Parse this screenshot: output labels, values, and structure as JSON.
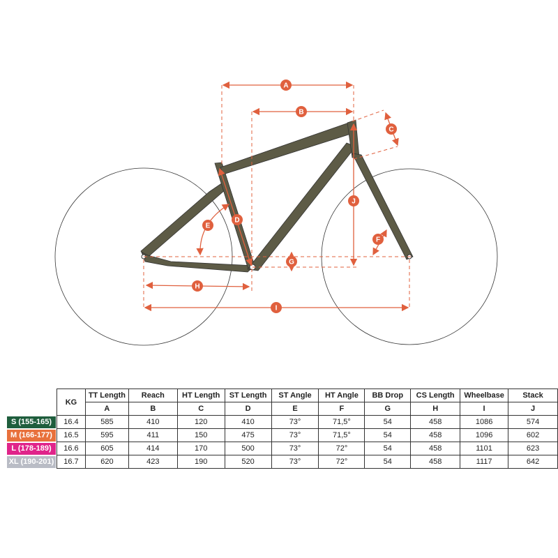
{
  "colors": {
    "frame": "#5d5b46",
    "dimension": "#e0603e",
    "size_s": "#1f5e3d",
    "size_m": "#e8713c",
    "size_l": "#e0248a",
    "size_xl": "#b9bcc5"
  },
  "dimension_labels": [
    "A",
    "B",
    "C",
    "D",
    "E",
    "F",
    "G",
    "H",
    "I",
    "J"
  ],
  "table": {
    "kg_header": "KG",
    "headers": [
      {
        "name": "TT Length",
        "code": "A"
      },
      {
        "name": "Reach",
        "code": "B"
      },
      {
        "name": "HT Length",
        "code": "C"
      },
      {
        "name": "ST Length",
        "code": "D"
      },
      {
        "name": "ST Angle",
        "code": "E"
      },
      {
        "name": "HT Angle",
        "code": "F"
      },
      {
        "name": "BB Drop",
        "code": "G"
      },
      {
        "name": "CS Length",
        "code": "H"
      },
      {
        "name": "Wheelbase",
        "code": "I"
      },
      {
        "name": "Stack",
        "code": "J"
      }
    ],
    "rows": [
      {
        "size": "S (155-165)",
        "values": [
          "16.4",
          "585",
          "410",
          "120",
          "410",
          "73°",
          "71,5°",
          "54",
          "458",
          "1086",
          "574"
        ]
      },
      {
        "size": "M (166-177)",
        "values": [
          "16.5",
          "595",
          "411",
          "150",
          "475",
          "73°",
          "71,5°",
          "54",
          "458",
          "1096",
          "602"
        ]
      },
      {
        "size": "L (178-189)",
        "values": [
          "16.6",
          "605",
          "414",
          "170",
          "500",
          "73°",
          "72°",
          "54",
          "458",
          "1101",
          "623"
        ]
      },
      {
        "size": "XL (190-201)",
        "values": [
          "16.7",
          "620",
          "423",
          "190",
          "520",
          "73°",
          "72°",
          "54",
          "458",
          "1117",
          "642"
        ]
      }
    ]
  }
}
